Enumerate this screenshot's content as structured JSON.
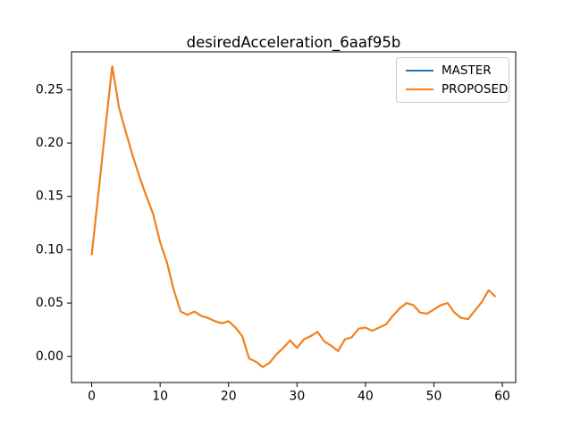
{
  "figure": {
    "background": "#ffffff",
    "axes_color": "#000000",
    "tick_label_color": "#000000"
  },
  "chart_data": {
    "type": "line",
    "title": "desiredAcceleration_6aaf95b",
    "xlabel": "",
    "ylabel": "",
    "grid": false,
    "legend_position": "upper right",
    "xlim": [
      -2.95,
      61.95
    ],
    "ylim": [
      -0.0245,
      0.2855
    ],
    "xticks": [
      0,
      10,
      20,
      30,
      40,
      50,
      60
    ],
    "xtick_labels": [
      "0",
      "10",
      "20",
      "30",
      "40",
      "50",
      "60"
    ],
    "yticks": [
      0.0,
      0.05,
      0.1,
      0.15,
      0.2,
      0.25
    ],
    "ytick_labels": [
      "0.00",
      "0.05",
      "0.10",
      "0.15",
      "0.20",
      "0.25"
    ],
    "x": [
      0,
      1,
      2,
      3,
      4,
      5,
      6,
      7,
      8,
      9,
      10,
      11,
      12,
      13,
      14,
      15,
      16,
      17,
      18,
      19,
      20,
      21,
      22,
      23,
      24,
      25,
      26,
      27,
      28,
      29,
      30,
      31,
      32,
      33,
      34,
      35,
      36,
      37,
      38,
      39,
      40,
      41,
      42,
      43,
      44,
      45,
      46,
      47,
      48,
      49,
      50,
      51,
      52,
      53,
      54,
      55,
      56,
      57,
      58,
      59
    ],
    "series": [
      {
        "name": "MASTER",
        "color": "#1f77b4",
        "values": [
          0.095,
          0.154,
          0.214,
          0.272,
          0.233,
          0.21,
          0.188,
          0.168,
          0.15,
          0.133,
          0.107,
          0.088,
          0.062,
          0.042,
          0.039,
          0.042,
          0.038,
          0.036,
          0.033,
          0.031,
          0.033,
          0.027,
          0.019,
          -0.002,
          -0.005,
          -0.01,
          -0.006,
          0.002,
          0.008,
          0.015,
          0.008,
          0.016,
          0.019,
          0.023,
          0.014,
          0.01,
          0.005,
          0.016,
          0.018,
          0.026,
          0.027,
          0.024,
          0.027,
          0.03,
          0.038,
          0.045,
          0.05,
          0.048,
          0.041,
          0.04,
          0.044,
          0.048,
          0.05,
          0.041,
          0.036,
          0.035,
          0.043,
          0.051,
          0.062,
          0.056
        ]
      },
      {
        "name": "PROPOSED",
        "color": "#ff7f0e",
        "values": [
          0.095,
          0.154,
          0.214,
          0.272,
          0.233,
          0.21,
          0.188,
          0.168,
          0.15,
          0.133,
          0.107,
          0.088,
          0.062,
          0.042,
          0.039,
          0.042,
          0.038,
          0.036,
          0.033,
          0.031,
          0.033,
          0.027,
          0.019,
          -0.002,
          -0.005,
          -0.01,
          -0.006,
          0.002,
          0.008,
          0.015,
          0.008,
          0.016,
          0.019,
          0.023,
          0.014,
          0.01,
          0.005,
          0.016,
          0.018,
          0.026,
          0.027,
          0.024,
          0.027,
          0.03,
          0.038,
          0.045,
          0.05,
          0.048,
          0.041,
          0.04,
          0.044,
          0.048,
          0.05,
          0.041,
          0.036,
          0.035,
          0.043,
          0.051,
          0.062,
          0.056
        ]
      }
    ]
  }
}
